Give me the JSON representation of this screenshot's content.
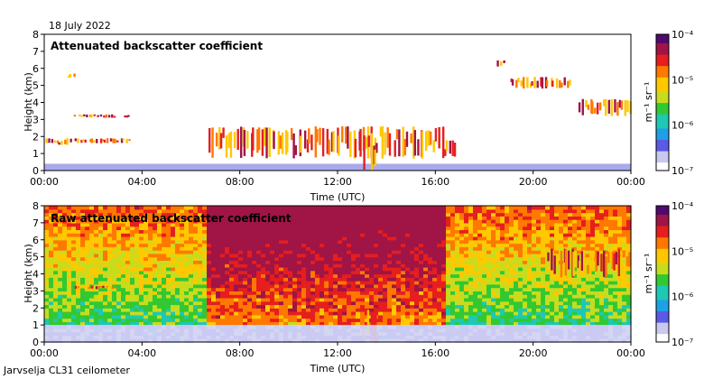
{
  "date": "18 July 2022",
  "footer": "Jarvselja CL31 ceilometer",
  "colors": {
    "scale": [
      "#ffffff",
      "#c8c8f0",
      "#5a5ae6",
      "#1ea0e6",
      "#1ec8b4",
      "#32c832",
      "#c8dc1e",
      "#ffc800",
      "#ff7800",
      "#e61e1e",
      "#a01446",
      "#500a6e"
    ]
  },
  "chart_data": [
    {
      "type": "heatmap",
      "title": "Attenuated backscatter coefficient",
      "xlabel": "Time (UTC)",
      "ylabel": "Height (km)",
      "xlim": [
        0,
        24
      ],
      "ylim": [
        0,
        8
      ],
      "x_ticks": [
        "00:00",
        "04:00",
        "08:00",
        "12:00",
        "16:00",
        "20:00",
        "00:00"
      ],
      "y_ticks": [
        "0",
        "1",
        "2",
        "3",
        "4",
        "5",
        "6",
        "7",
        "8"
      ],
      "colorbar": {
        "label": "m⁻¹ sr⁻¹",
        "scale": "log",
        "range": [
          1e-07,
          0.0001
        ],
        "ticks": [
          "10⁻⁷",
          "10⁻⁶",
          "10⁻⁵",
          "10⁻⁴"
        ]
      },
      "features": [
        {
          "layer": "surface",
          "start": 0,
          "end": 24,
          "height": [
            0,
            0.4
          ]
        },
        {
          "layer": "cloud",
          "start": 0,
          "end": 1.1,
          "height": [
            1.5,
            1.9
          ]
        },
        {
          "layer": "cloud",
          "start": 1.2,
          "end": 3.5,
          "height": [
            1.6,
            1.9
          ]
        },
        {
          "layer": "cloud",
          "start": 1.2,
          "end": 2.9,
          "height": [
            3.1,
            3.3
          ]
        },
        {
          "layer": "cloud",
          "start": 3.2,
          "end": 3.5,
          "height": [
            3.1,
            3.3
          ]
        },
        {
          "layer": "cloud",
          "start": 0.9,
          "end": 1.2,
          "height": [
            5.4,
            5.7
          ]
        },
        {
          "layer": "cloud",
          "start": 6.7,
          "end": 16.3,
          "height": [
            0.7,
            2.6
          ]
        },
        {
          "layer": "cloud",
          "start": 16.3,
          "end": 16.8,
          "height": [
            0.8,
            1.8
          ]
        },
        {
          "layer": "cloud",
          "start": 13.0,
          "end": 13.6,
          "height": [
            0,
            2.2
          ]
        },
        {
          "layer": "cloud",
          "start": 18.5,
          "end": 18.8,
          "height": [
            6.1,
            6.5
          ]
        },
        {
          "layer": "cloud",
          "start": 19.0,
          "end": 21.5,
          "height": [
            4.8,
            5.5
          ]
        },
        {
          "layer": "cloud",
          "start": 21.8,
          "end": 24.0,
          "height": [
            3.2,
            4.2
          ]
        }
      ]
    },
    {
      "type": "heatmap",
      "title": "Raw attenuated backscatter coefficient",
      "xlabel": "Time (UTC)",
      "ylabel": "Height (km)",
      "xlim": [
        0,
        24
      ],
      "ylim": [
        0,
        8
      ],
      "x_ticks": [
        "00:00",
        "04:00",
        "08:00",
        "12:00",
        "16:00",
        "20:00",
        "00:00"
      ],
      "y_ticks": [
        "0",
        "1",
        "2",
        "3",
        "4",
        "5",
        "6",
        "7",
        "8"
      ],
      "colorbar": {
        "label": "m⁻¹ sr⁻¹",
        "scale": "log",
        "range": [
          1e-07,
          0.0001
        ],
        "ticks": [
          "10⁻⁷",
          "10⁻⁶",
          "10⁻⁵",
          "10⁻⁴"
        ]
      },
      "features": [
        {
          "layer": "high-noise",
          "start": 6.7,
          "end": 16.5,
          "height": [
            4.5,
            8
          ]
        },
        {
          "layer": "cloud",
          "start": 1.2,
          "end": 2.9,
          "height": [
            3.1,
            3.3
          ]
        },
        {
          "layer": "cloud",
          "start": 20.5,
          "end": 24.0,
          "height": [
            3.8,
            5.5
          ]
        },
        {
          "layer": "cloud",
          "start": 13.0,
          "end": 13.6,
          "height": [
            0,
            2.2
          ]
        },
        {
          "layer": "surface",
          "start": 0,
          "end": 24,
          "height": [
            0,
            1.0
          ]
        }
      ]
    }
  ]
}
